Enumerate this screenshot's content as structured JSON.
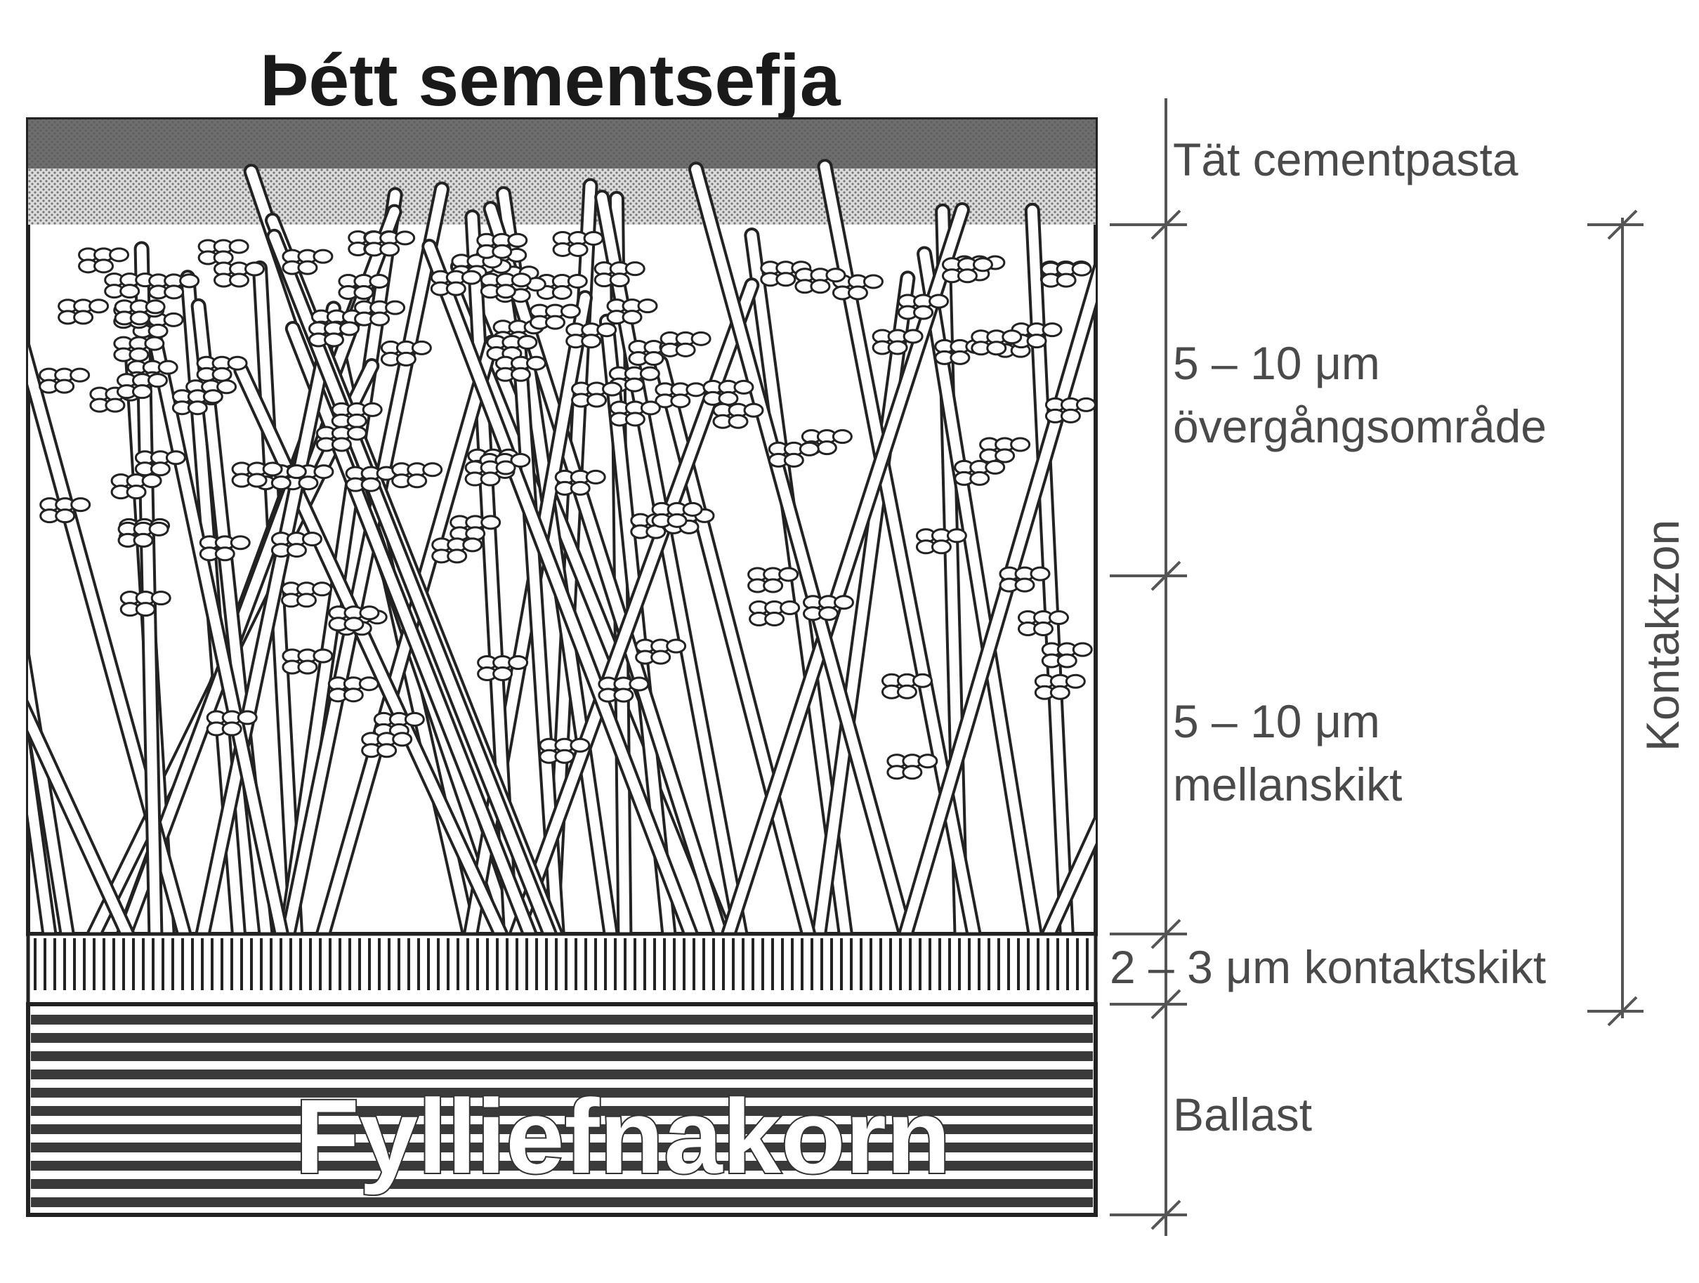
{
  "title": "Þétt sementsefja",
  "ballast_label": "Fylliefnakorn",
  "colors": {
    "ink": "#2a2a2a",
    "label_gray": "#4a4a4a",
    "dense_paste": "#555555",
    "background": "#ffffff"
  },
  "layers": [
    {
      "id": "dense",
      "label": "Tät cementpasta"
    },
    {
      "id": "transition",
      "label_line1": "5 – 10 μm",
      "label_line2": "övergångsområde"
    },
    {
      "id": "intermediate",
      "label_line1": "5 – 10 μm",
      "label_line2": "mellanskikt"
    },
    {
      "id": "contact",
      "label": "2 – 3 μm kontaktskikt"
    },
    {
      "id": "ballast",
      "label": "Ballast"
    }
  ],
  "zone_label": "Kontaktzon"
}
